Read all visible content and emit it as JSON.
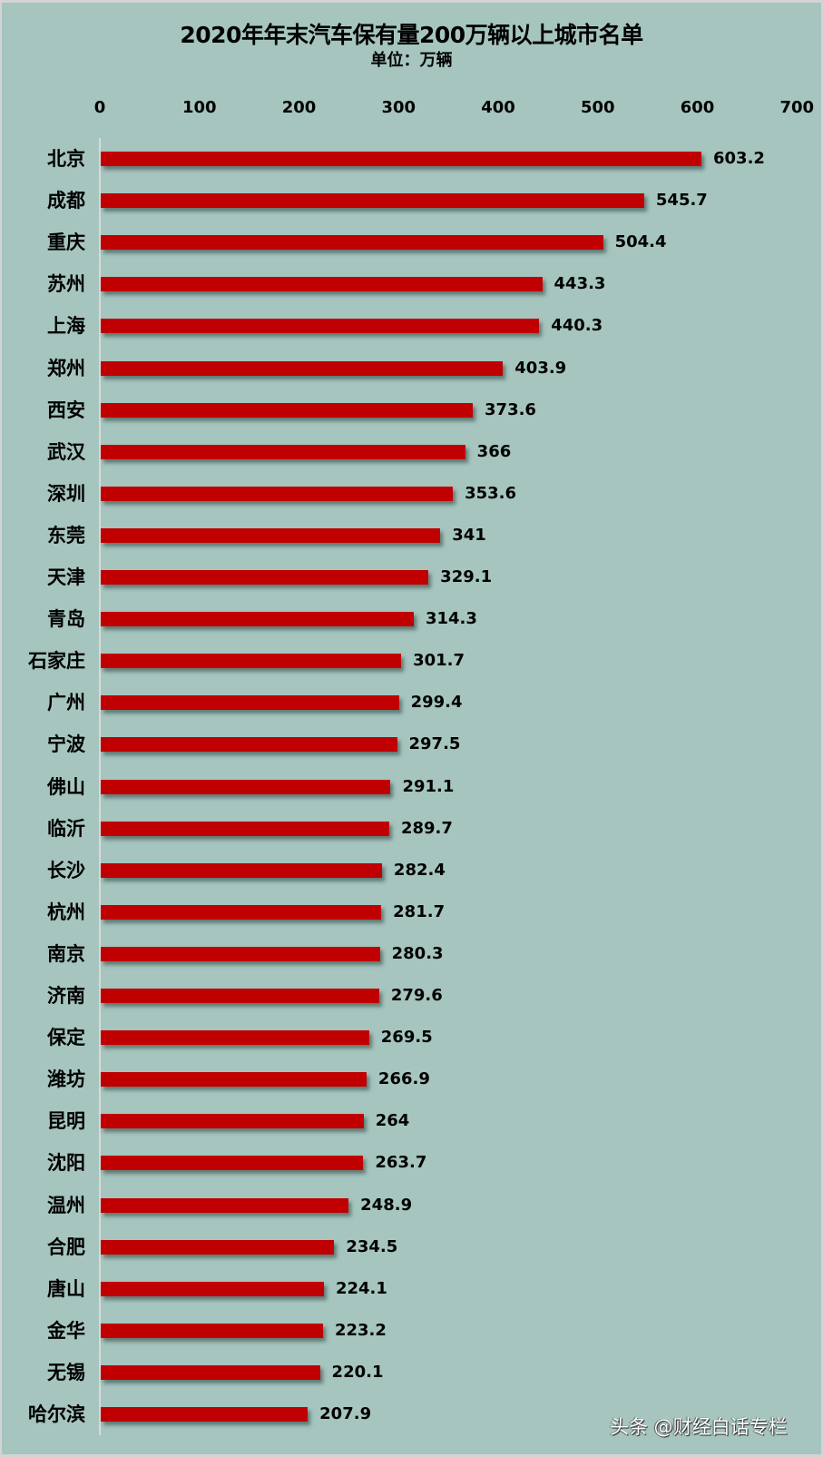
{
  "chart_data": {
    "type": "bar",
    "orientation": "horizontal",
    "title": "2020年年末汽车保有量200万辆以上城市名单",
    "subtitle": "单位：万辆",
    "xlabel": "",
    "ylabel": "",
    "xlim": [
      0,
      700
    ],
    "x_ticks": [
      "0",
      "100",
      "200",
      "300",
      "400",
      "500",
      "600",
      "700"
    ],
    "x_axis_position": "top",
    "grid": false,
    "legend": null,
    "bar_color": "#c00000",
    "background_color": "#a6c5bf",
    "data_labels": true,
    "categories": [
      "北京",
      "成都",
      "重庆",
      "苏州",
      "上海",
      "郑州",
      "西安",
      "武汉",
      "深圳",
      "东莞",
      "天津",
      "青岛",
      "石家庄",
      "广州",
      "宁波",
      "佛山",
      "临沂",
      "长沙",
      "杭州",
      "南京",
      "济南",
      "保定",
      "潍坊",
      "昆明",
      "沈阳",
      "温州",
      "合肥",
      "唐山",
      "金华",
      "无锡",
      "哈尔滨"
    ],
    "values": [
      603.2,
      545.7,
      504.4,
      443.3,
      440.3,
      403.9,
      373.6,
      366,
      353.6,
      341,
      329.1,
      314.3,
      301.7,
      299.4,
      297.5,
      291.1,
      289.7,
      282.4,
      281.7,
      280.3,
      279.6,
      269.5,
      266.9,
      264,
      263.7,
      248.9,
      234.5,
      224.1,
      223.2,
      220.1,
      207.9
    ],
    "value_labels": [
      "603.2",
      "545.7",
      "504.4",
      "443.3",
      "440.3",
      "403.9",
      "373.6",
      "366",
      "353.6",
      "341",
      "329.1",
      "314.3",
      "301.7",
      "299.4",
      "297.5",
      "291.1",
      "289.7",
      "282.4",
      "281.7",
      "280.3",
      "279.6",
      "269.5",
      "266.9",
      "264",
      "263.7",
      "248.9",
      "234.5",
      "224.1",
      "223.2",
      "220.1",
      "207.9"
    ]
  },
  "watermark": "头条 @财经白话专栏"
}
